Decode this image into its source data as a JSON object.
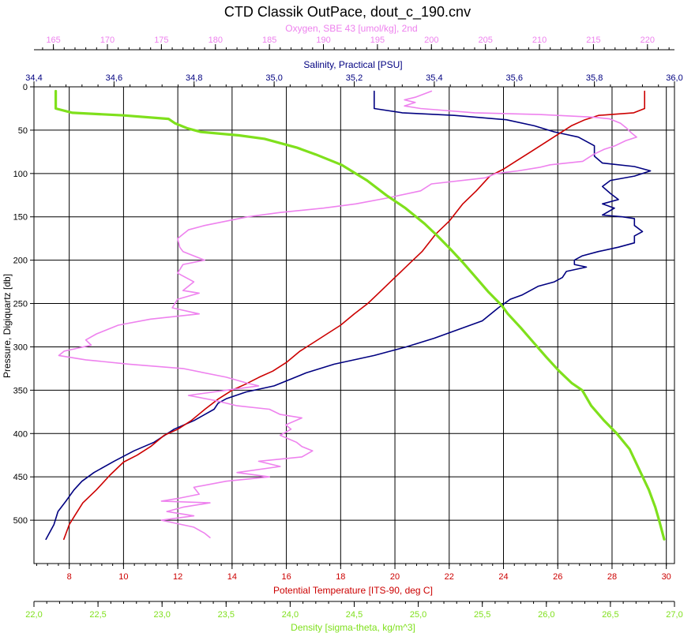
{
  "chart_data": {
    "type": "line",
    "title": "CTD Classik OutPace, dout_c_190.cnv",
    "y_axis": {
      "label": "Pressure, Digiquartz [db]",
      "range": [
        0,
        550
      ],
      "inverted": true,
      "ticks": [
        0,
        50,
        100,
        150,
        200,
        250,
        300,
        350,
        400,
        450,
        500
      ],
      "tick_labels": [
        "0",
        "50",
        "100",
        "150",
        "200",
        "250",
        "300",
        "350",
        "400",
        "450",
        "500"
      ]
    },
    "x_axes": {
      "oxygen": {
        "label": "Oxygen, SBE 43 [umol/kg], 2nd",
        "position": "top",
        "range": [
          163.2,
          222.5
        ],
        "ticks": [
          165,
          170,
          175,
          180,
          185,
          190,
          195,
          200,
          205,
          210,
          215,
          220
        ],
        "tick_labels": [
          "165",
          "170",
          "175",
          "180",
          "185",
          "190",
          "195",
          "200",
          "205",
          "210",
          "215",
          "220"
        ],
        "color": "#ee82ee"
      },
      "salinity": {
        "label": "Salinity, Practical [PSU]",
        "position": "top",
        "range": [
          34.4,
          36.0
        ],
        "ticks": [
          34.4,
          34.6,
          34.8,
          35.0,
          35.2,
          35.4,
          35.6,
          35.8,
          36.0
        ],
        "tick_labels": [
          "34,4",
          "34,6",
          "34,8",
          "35,0",
          "35,2",
          "35,4",
          "35,6",
          "35,8",
          "36,0"
        ],
        "color": "#000080"
      },
      "temperature": {
        "label": "Potential Temperature [ITS-90, deg C]",
        "position": "bottom",
        "range": [
          6.7,
          30.3
        ],
        "ticks": [
          8,
          10,
          12,
          14,
          16,
          18,
          20,
          22,
          24,
          26,
          28,
          30
        ],
        "tick_labels": [
          "8",
          "10",
          "12",
          "14",
          "16",
          "18",
          "20",
          "22",
          "24",
          "26",
          "28",
          "30"
        ],
        "color": "#cc0000"
      },
      "density": {
        "label": "Density [sigma-theta, kg/m^3]",
        "position": "bottom",
        "range": [
          22.0,
          27.0
        ],
        "ticks": [
          22.0,
          22.5,
          23.0,
          23.5,
          24.0,
          24.5,
          25.0,
          25.5,
          26.0,
          26.5,
          27.0
        ],
        "tick_labels": [
          "22,0",
          "22,5",
          "23,0",
          "23,5",
          "24,0",
          "24,5",
          "25,0",
          "25,5",
          "26,0",
          "26,5",
          "27,0"
        ],
        "color": "#7fe01c"
      }
    },
    "grid": true,
    "series": [
      {
        "axis": "salinity",
        "color": "#000080",
        "points": [
          [
            35.25,
            5
          ],
          [
            35.25,
            25
          ],
          [
            35.32,
            30
          ],
          [
            35.45,
            33
          ],
          [
            35.58,
            38
          ],
          [
            35.65,
            45
          ],
          [
            35.7,
            52
          ],
          [
            35.73,
            55
          ],
          [
            35.76,
            58
          ],
          [
            35.8,
            68
          ],
          [
            35.8,
            80
          ],
          [
            35.82,
            88
          ],
          [
            35.9,
            92
          ],
          [
            35.94,
            97
          ],
          [
            35.9,
            103
          ],
          [
            35.84,
            108
          ],
          [
            35.82,
            115
          ],
          [
            35.84,
            123
          ],
          [
            35.86,
            130
          ],
          [
            35.82,
            135
          ],
          [
            35.85,
            140
          ],
          [
            35.82,
            148
          ],
          [
            35.87,
            150
          ],
          [
            35.9,
            152
          ],
          [
            35.9,
            160
          ],
          [
            35.92,
            167
          ],
          [
            35.9,
            172
          ],
          [
            35.9,
            180
          ],
          [
            35.86,
            185
          ],
          [
            35.81,
            190
          ],
          [
            35.77,
            195
          ],
          [
            35.75,
            200
          ],
          [
            35.75,
            205
          ],
          [
            35.78,
            208
          ],
          [
            35.73,
            213
          ],
          [
            35.72,
            220
          ],
          [
            35.7,
            225
          ],
          [
            35.66,
            230
          ],
          [
            35.62,
            240
          ],
          [
            35.59,
            245
          ],
          [
            35.56,
            255
          ],
          [
            35.52,
            270
          ],
          [
            35.46,
            280
          ],
          [
            35.4,
            290
          ],
          [
            35.33,
            300
          ],
          [
            35.25,
            310
          ],
          [
            35.15,
            320
          ],
          [
            35.08,
            330
          ],
          [
            35.0,
            345
          ],
          [
            34.93,
            352
          ],
          [
            34.88,
            360
          ],
          [
            34.86,
            365
          ],
          [
            34.85,
            372
          ],
          [
            34.8,
            385
          ],
          [
            34.75,
            395
          ],
          [
            34.7,
            410
          ],
          [
            34.65,
            420
          ],
          [
            34.6,
            432
          ],
          [
            34.55,
            445
          ],
          [
            34.52,
            455
          ],
          [
            34.5,
            465
          ],
          [
            34.48,
            478
          ],
          [
            34.46,
            490
          ],
          [
            34.45,
            505
          ],
          [
            34.43,
            522
          ]
        ]
      },
      {
        "axis": "temperature",
        "color": "#cc0000",
        "points": [
          [
            29.2,
            5
          ],
          [
            29.2,
            25
          ],
          [
            28.8,
            30
          ],
          [
            27.5,
            33
          ],
          [
            27.0,
            38
          ],
          [
            26.5,
            45
          ],
          [
            26.0,
            55
          ],
          [
            25.5,
            65
          ],
          [
            25.0,
            75
          ],
          [
            24.5,
            85
          ],
          [
            24.0,
            95
          ],
          [
            23.5,
            103
          ],
          [
            23.0,
            120
          ],
          [
            22.5,
            135
          ],
          [
            22.0,
            155
          ],
          [
            21.5,
            170
          ],
          [
            21.0,
            190
          ],
          [
            20.5,
            205
          ],
          [
            20.0,
            220
          ],
          [
            19.5,
            235
          ],
          [
            19.0,
            250
          ],
          [
            18.5,
            262
          ],
          [
            18.0,
            275
          ],
          [
            17.5,
            285
          ],
          [
            17.0,
            295
          ],
          [
            16.5,
            305
          ],
          [
            16.0,
            318
          ],
          [
            15.5,
            328
          ],
          [
            15.0,
            335
          ],
          [
            14.5,
            343
          ],
          [
            14.0,
            350
          ],
          [
            13.5,
            360
          ],
          [
            13.0,
            372
          ],
          [
            12.5,
            385
          ],
          [
            12.0,
            395
          ],
          [
            11.5,
            402
          ],
          [
            11.0,
            415
          ],
          [
            10.5,
            425
          ],
          [
            10.0,
            433
          ],
          [
            9.5,
            448
          ],
          [
            9.0,
            465
          ],
          [
            8.5,
            480
          ],
          [
            8.2,
            495
          ],
          [
            8.0,
            505
          ],
          [
            7.8,
            522
          ]
        ]
      },
      {
        "axis": "oxygen",
        "color": "#ee82ee",
        "points": [
          [
            200.0,
            5
          ],
          [
            198.5,
            12
          ],
          [
            197.5,
            15
          ],
          [
            198.5,
            18
          ],
          [
            197.5,
            22
          ],
          [
            199.0,
            25
          ],
          [
            204.0,
            30
          ],
          [
            210.0,
            32
          ],
          [
            215.0,
            35
          ],
          [
            216.5,
            37
          ],
          [
            217.5,
            42
          ],
          [
            218.0,
            47
          ],
          [
            218.5,
            53
          ],
          [
            219.0,
            58
          ],
          [
            218.0,
            62
          ],
          [
            217.0,
            68
          ],
          [
            216.0,
            72
          ],
          [
            215.0,
            78
          ],
          [
            214.5,
            82
          ],
          [
            214.0,
            86
          ],
          [
            211.0,
            90
          ],
          [
            210.0,
            93
          ],
          [
            208.0,
            97
          ],
          [
            206.0,
            100
          ],
          [
            205.0,
            105
          ],
          [
            200.0,
            112
          ],
          [
            199.0,
            120
          ],
          [
            196.0,
            128
          ],
          [
            193.0,
            135
          ],
          [
            190.0,
            140
          ],
          [
            186.0,
            145
          ],
          [
            183.0,
            150
          ],
          [
            181.0,
            155
          ],
          [
            179.0,
            160
          ],
          [
            177.5,
            165
          ],
          [
            177.0,
            170
          ],
          [
            176.5,
            175
          ],
          [
            176.7,
            185
          ],
          [
            177.0,
            190
          ],
          [
            179.0,
            200
          ],
          [
            177.0,
            205
          ],
          [
            176.5,
            215
          ],
          [
            178.0,
            225
          ],
          [
            177.0,
            235
          ],
          [
            178.5,
            238
          ],
          [
            176.5,
            245
          ],
          [
            176.0,
            255
          ],
          [
            178.5,
            262
          ],
          [
            174.0,
            268
          ],
          [
            171.0,
            275
          ],
          [
            169.0,
            285
          ],
          [
            168.0,
            292
          ],
          [
            168.5,
            298
          ],
          [
            166.0,
            305
          ],
          [
            165.5,
            310
          ],
          [
            168.0,
            315
          ],
          [
            172.0,
            320
          ],
          [
            177.0,
            325
          ],
          [
            181.0,
            335
          ],
          [
            183.0,
            342
          ],
          [
            184.0,
            345
          ],
          [
            181.0,
            350
          ],
          [
            177.5,
            356
          ],
          [
            180.0,
            362
          ],
          [
            182.0,
            368
          ],
          [
            185.0,
            372
          ],
          [
            186.0,
            378
          ],
          [
            188.0,
            382
          ],
          [
            186.5,
            390
          ],
          [
            187.0,
            395
          ],
          [
            186.0,
            402
          ],
          [
            187.5,
            410
          ],
          [
            188.0,
            415
          ],
          [
            189.0,
            420
          ],
          [
            188.0,
            427
          ],
          [
            184.0,
            432
          ],
          [
            186.0,
            438
          ],
          [
            182.0,
            445
          ],
          [
            185.0,
            450
          ],
          [
            181.0,
            455
          ],
          [
            178.0,
            462
          ],
          [
            178.5,
            470
          ],
          [
            176.5,
            475
          ],
          [
            175.0,
            478
          ],
          [
            179.5,
            480
          ],
          [
            177.0,
            485
          ],
          [
            175.5,
            490
          ],
          [
            178.0,
            495
          ],
          [
            175.0,
            500
          ],
          [
            178.0,
            508
          ],
          [
            179.0,
            515
          ],
          [
            179.5,
            520
          ]
        ]
      },
      {
        "axis": "density",
        "color": "#7fe01c",
        "points": [
          [
            22.17,
            5
          ],
          [
            22.17,
            25
          ],
          [
            22.3,
            30
          ],
          [
            22.7,
            33
          ],
          [
            23.05,
            37
          ],
          [
            23.1,
            42
          ],
          [
            23.2,
            48
          ],
          [
            23.3,
            52
          ],
          [
            23.6,
            56
          ],
          [
            23.8,
            60
          ],
          [
            24.05,
            70
          ],
          [
            24.2,
            78
          ],
          [
            24.4,
            90
          ],
          [
            24.6,
            108
          ],
          [
            24.75,
            125
          ],
          [
            24.9,
            140
          ],
          [
            25.05,
            158
          ],
          [
            25.15,
            172
          ],
          [
            25.25,
            187
          ],
          [
            25.35,
            203
          ],
          [
            25.45,
            220
          ],
          [
            25.55,
            237
          ],
          [
            25.65,
            252
          ],
          [
            25.7,
            262
          ],
          [
            25.8,
            278
          ],
          [
            25.9,
            295
          ],
          [
            26.0,
            312
          ],
          [
            26.1,
            328
          ],
          [
            26.2,
            342
          ],
          [
            26.28,
            350
          ],
          [
            26.35,
            368
          ],
          [
            26.45,
            385
          ],
          [
            26.55,
            400
          ],
          [
            26.65,
            418
          ],
          [
            26.72,
            440
          ],
          [
            26.8,
            465
          ],
          [
            26.85,
            485
          ],
          [
            26.88,
            500
          ],
          [
            26.92,
            522
          ]
        ]
      }
    ]
  }
}
